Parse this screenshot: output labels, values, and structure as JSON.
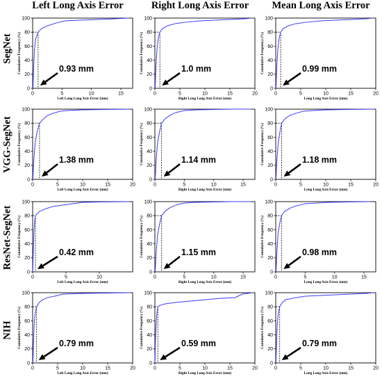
{
  "columns": [
    "Left Long Axis Error",
    "Right Long Axis Error",
    "Mean Long Axis Error"
  ],
  "rows": [
    "SegNet",
    "VGG-SegNet",
    "ResNet-SegNet",
    "NIH"
  ],
  "chart_data": [
    {
      "type": "line",
      "row": "SegNet",
      "column": "Left Long Axis Error",
      "xlabel": "Left Long Long Axis Error (mm)",
      "ylabel": "Cumulative Frequency (%)",
      "xlim": [
        0,
        17
      ],
      "ylim": [
        0,
        100
      ],
      "xticks": [
        0,
        5,
        10,
        15
      ],
      "yticks": [
        0,
        20,
        40,
        60,
        80,
        100
      ],
      "annotation": "0.93 mm",
      "marker_x": 0.93,
      "marker_y": 80,
      "series": [
        {
          "x": [
            0.05,
            0.15,
            0.3,
            0.5,
            0.93,
            1.5,
            2.5,
            4,
            5.5,
            8,
            11,
            14,
            16.3
          ],
          "y": [
            0,
            25,
            55,
            70,
            80,
            85,
            89,
            93,
            96,
            97,
            98,
            99,
            100
          ]
        }
      ]
    },
    {
      "type": "line",
      "row": "SegNet",
      "column": "Right Long Axis Error",
      "xlabel": "Right Long Long Axis Error (mm)",
      "ylabel": "Cumulative Frequency (%)",
      "xlim": [
        0,
        20
      ],
      "ylim": [
        0,
        100
      ],
      "xticks": [
        0,
        5,
        10,
        15,
        20
      ],
      "yticks": [
        0,
        20,
        40,
        60,
        80,
        100
      ],
      "annotation": "1.0 mm",
      "marker_x": 1.0,
      "marker_y": 80,
      "series": [
        {
          "x": [
            0.05,
            0.2,
            0.45,
            0.7,
            1.0,
            1.5,
            2.5,
            4,
            6,
            9,
            12,
            15,
            18,
            19.4
          ],
          "y": [
            0,
            30,
            58,
            72,
            80,
            85,
            89,
            92,
            94,
            96,
            97,
            98,
            99,
            100
          ]
        }
      ]
    },
    {
      "type": "line",
      "row": "SegNet",
      "column": "Mean Long Axis Error",
      "xlabel": "Long Long Axis Error (mm)",
      "ylabel": "Cumulative Frequency (%)",
      "xlim": [
        0,
        20
      ],
      "ylim": [
        0,
        100
      ],
      "xticks": [
        0,
        5,
        10,
        15,
        20
      ],
      "yticks": [
        0,
        20,
        40,
        60,
        80,
        100
      ],
      "annotation": "0.99 mm",
      "marker_x": 0.99,
      "marker_y": 80,
      "series": [
        {
          "x": [
            0.05,
            0.2,
            0.45,
            0.7,
            0.99,
            1.5,
            2.5,
            4,
            6,
            9,
            12,
            15,
            18,
            19.4
          ],
          "y": [
            0,
            30,
            58,
            72,
            80,
            85,
            89,
            92,
            94,
            96,
            97,
            98,
            99,
            100
          ]
        }
      ]
    },
    {
      "type": "line",
      "row": "VGG-SegNet",
      "column": "Left Long Axis Error",
      "xlabel": "Left Long Long Axis Error (mm)",
      "ylabel": "Cumulative Frequency (%)",
      "xlim": [
        0,
        20
      ],
      "ylim": [
        0,
        100
      ],
      "xticks": [
        0,
        5,
        10,
        15,
        20
      ],
      "yticks": [
        0,
        20,
        40,
        60,
        80,
        100
      ],
      "annotation": "1.38 mm",
      "marker_x": 1.38,
      "marker_y": 80,
      "series": [
        {
          "x": [
            0.05,
            0.2,
            0.5,
            0.9,
            1.38,
            2,
            3,
            4,
            5.5,
            7,
            10,
            14,
            19.5
          ],
          "y": [
            0,
            25,
            52,
            68,
            80,
            85,
            91,
            94,
            97,
            98,
            99,
            99.5,
            100
          ]
        }
      ]
    },
    {
      "type": "line",
      "row": "VGG-SegNet",
      "column": "Right Long Axis Error",
      "xlabel": "Right Long Long Axis Error (mm)",
      "ylabel": "Cumulative Frequency (%)",
      "xlim": [
        0,
        17
      ],
      "ylim": [
        0,
        100
      ],
      "xticks": [
        0,
        5,
        10,
        15
      ],
      "yticks": [
        0,
        20,
        40,
        60,
        80,
        100
      ],
      "annotation": "1.14 mm",
      "marker_x": 1.14,
      "marker_y": 80,
      "series": [
        {
          "x": [
            0.05,
            0.2,
            0.45,
            0.8,
            1.14,
            1.7,
            2.5,
            3.5,
            5,
            7,
            10,
            13,
            16.3
          ],
          "y": [
            0,
            25,
            52,
            68,
            80,
            86,
            91,
            95,
            98,
            99,
            99.5,
            100,
            100
          ]
        }
      ]
    },
    {
      "type": "line",
      "row": "VGG-SegNet",
      "column": "Mean Long Axis Error",
      "xlabel": "Long Long Axis Error (mm)",
      "ylabel": "Cumulative Frequency (%)",
      "xlim": [
        0,
        20
      ],
      "ylim": [
        0,
        100
      ],
      "xticks": [
        0,
        5,
        10,
        15,
        20
      ],
      "yticks": [
        0,
        20,
        40,
        60,
        80,
        100
      ],
      "annotation": "1.18 mm",
      "marker_x": 1.18,
      "marker_y": 80,
      "series": [
        {
          "x": [
            0.05,
            0.2,
            0.5,
            0.85,
            1.18,
            1.8,
            2.8,
            4,
            5.5,
            7.5,
            10,
            14,
            19.5
          ],
          "y": [
            0,
            25,
            52,
            68,
            80,
            86,
            91,
            94,
            97,
            98,
            99,
            99.5,
            100
          ]
        }
      ]
    },
    {
      "type": "line",
      "row": "ResNet-SegNet",
      "column": "Left Long Axis Error",
      "xlabel": "Left Long Long Axis Error (mm)",
      "ylabel": "Cumulative Frequency (%)",
      "xlim": [
        0,
        15
      ],
      "ylim": [
        0,
        100
      ],
      "xticks": [
        0,
        5,
        10
      ],
      "yticks": [
        0,
        20,
        40,
        60,
        80,
        100
      ],
      "annotation": "0.42 mm",
      "marker_x": 0.42,
      "marker_y": 80,
      "series": [
        {
          "x": [
            0.02,
            0.1,
            0.2,
            0.3,
            0.42,
            1,
            2,
            3,
            4.5,
            6,
            7.5,
            10,
            14.5
          ],
          "y": [
            0,
            30,
            58,
            72,
            80,
            86,
            90,
            93,
            95,
            97,
            99,
            99.5,
            100
          ]
        }
      ]
    },
    {
      "type": "line",
      "row": "ResNet-SegNet",
      "column": "Right Long Axis Error",
      "xlabel": "Right Long Long Axis Error (mm)",
      "ylabel": "Cumulative Frequency (%)",
      "xlim": [
        0,
        17
      ],
      "ylim": [
        0,
        100
      ],
      "xticks": [
        0,
        5,
        10,
        15
      ],
      "yticks": [
        0,
        20,
        40,
        60,
        80,
        100
      ],
      "annotation": "1.15 mm",
      "marker_x": 1.15,
      "marker_y": 80,
      "series": [
        {
          "x": [
            0.05,
            0.2,
            0.45,
            0.8,
            1.15,
            1.7,
            2.5,
            3.5,
            5,
            7,
            10,
            13,
            16.3
          ],
          "y": [
            0,
            25,
            52,
            68,
            80,
            86,
            91,
            95,
            98,
            99,
            99.5,
            100,
            100
          ]
        }
      ]
    },
    {
      "type": "line",
      "row": "ResNet-SegNet",
      "column": "Mean Long Axis Error",
      "xlabel": "Long Long Axis Error (mm)",
      "ylabel": "Cumulative Frequency (%)",
      "xlim": [
        0,
        17
      ],
      "ylim": [
        0,
        100
      ],
      "xticks": [
        0,
        5,
        10,
        15
      ],
      "yticks": [
        0,
        20,
        40,
        60,
        80,
        100
      ],
      "annotation": "0.98 mm",
      "marker_x": 0.98,
      "marker_y": 80,
      "series": [
        {
          "x": [
            0.05,
            0.2,
            0.4,
            0.7,
            0.98,
            1.5,
            2.5,
            3.5,
            5,
            7,
            9,
            12,
            16
          ],
          "y": [
            0,
            28,
            55,
            70,
            80,
            86,
            91,
            94,
            97,
            98,
            99,
            99.5,
            100
          ]
        }
      ]
    },
    {
      "type": "line",
      "row": "NIH",
      "column": "Left Long Axis Error",
      "xlabel": "Left Long Long Axis Error (mm)",
      "ylabel": "Cumulative Frequency (%)",
      "xlim": [
        0,
        20
      ],
      "ylim": [
        0,
        100
      ],
      "xticks": [
        0,
        5,
        10,
        15,
        20
      ],
      "yticks": [
        0,
        20,
        40,
        60,
        80,
        100
      ],
      "annotation": "0.79 mm",
      "marker_x": 0.79,
      "marker_y": 80,
      "series": [
        {
          "x": [
            0.05,
            0.15,
            0.3,
            0.5,
            0.79,
            1.3,
            2,
            3,
            5,
            6,
            10,
            15,
            19.5
          ],
          "y": [
            0,
            25,
            55,
            70,
            80,
            86,
            90,
            93,
            96,
            98,
            99,
            99.5,
            100
          ]
        }
      ]
    },
    {
      "type": "line",
      "row": "NIH",
      "column": "Right Long Axis Error",
      "xlabel": "Right Long Long Axis Error (mm)",
      "ylabel": "Cumulative Frequency (%)",
      "xlim": [
        0,
        20
      ],
      "ylim": [
        0,
        100
      ],
      "xticks": [
        0,
        5,
        10,
        15,
        20
      ],
      "yticks": [
        0,
        20,
        40,
        60,
        80,
        100
      ],
      "annotation": "0.59 mm",
      "marker_x": 0.59,
      "marker_y": 80,
      "series": [
        {
          "x": [
            0.02,
            0.1,
            0.25,
            0.4,
            0.59,
            1,
            2,
            4,
            7,
            10,
            13,
            16,
            17.5,
            19.5
          ],
          "y": [
            0,
            30,
            55,
            70,
            80,
            82,
            84,
            86,
            88,
            90,
            92,
            93,
            98,
            100
          ]
        }
      ]
    },
    {
      "type": "line",
      "row": "NIH",
      "column": "Mean Long Axis Error",
      "xlabel": "Long Long Axis Error (mm)",
      "ylabel": "Cumulative Frequency (%)",
      "xlim": [
        0,
        20
      ],
      "ylim": [
        0,
        100
      ],
      "xticks": [
        0,
        5,
        10,
        15,
        20
      ],
      "yticks": [
        0,
        20,
        40,
        60,
        80,
        100
      ],
      "annotation": "0.79 mm",
      "marker_x": 0.79,
      "marker_y": 80,
      "series": [
        {
          "x": [
            0.05,
            0.15,
            0.3,
            0.5,
            0.79,
            1.3,
            2,
            4,
            6,
            9,
            12,
            15,
            18,
            19.5
          ],
          "y": [
            0,
            28,
            55,
            70,
            80,
            86,
            90,
            93,
            95,
            96,
            97,
            98,
            99,
            100
          ]
        }
      ]
    }
  ]
}
